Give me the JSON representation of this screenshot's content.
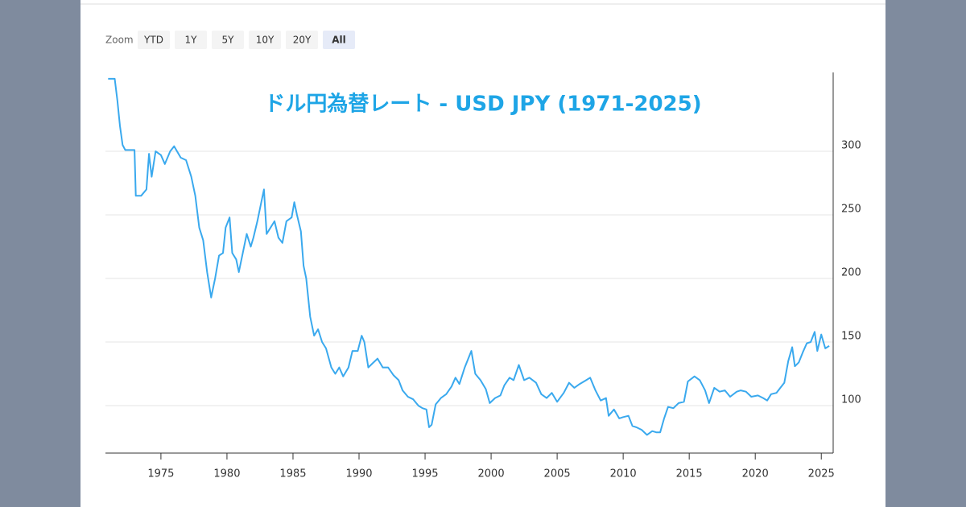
{
  "range_selector": {
    "label": "Zoom",
    "buttons": [
      "YTD",
      "1Y",
      "5Y",
      "10Y",
      "20Y",
      "All"
    ],
    "selected": "All"
  },
  "chart_data": {
    "type": "line",
    "title": "ドル円為替レート - USD JPY (1971-2025)",
    "color": "#3aa9ee",
    "grid": true,
    "x": [
      1971.0,
      1971.5,
      1971.7,
      1971.9,
      1972.1,
      1972.3,
      1972.6,
      1973.0,
      1973.1,
      1973.5,
      1973.9,
      1974.1,
      1974.3,
      1974.6,
      1975.0,
      1975.3,
      1975.7,
      1976.0,
      1976.5,
      1976.9,
      1977.3,
      1977.6,
      1977.9,
      1978.2,
      1978.5,
      1978.8,
      1979.1,
      1979.4,
      1979.7,
      1979.9,
      1980.2,
      1980.4,
      1980.7,
      1980.9,
      1981.2,
      1981.5,
      1981.8,
      1982.0,
      1982.3,
      1982.6,
      1982.8,
      1983.0,
      1983.3,
      1983.6,
      1983.9,
      1984.2,
      1984.5,
      1984.9,
      1985.1,
      1985.3,
      1985.6,
      1985.8,
      1986.0,
      1986.3,
      1986.6,
      1986.9,
      1987.2,
      1987.5,
      1987.9,
      1988.2,
      1988.5,
      1988.8,
      1989.2,
      1989.5,
      1989.9,
      1990.2,
      1990.4,
      1990.7,
      1991.0,
      1991.4,
      1991.8,
      1992.2,
      1992.6,
      1993.0,
      1993.3,
      1993.7,
      1994.1,
      1994.5,
      1994.8,
      1995.1,
      1995.3,
      1995.5,
      1995.8,
      1996.2,
      1996.6,
      1997.0,
      1997.3,
      1997.6,
      1998.0,
      1998.5,
      1998.8,
      1999.2,
      1999.6,
      1999.9,
      2000.3,
      2000.7,
      2001.0,
      2001.4,
      2001.7,
      2002.1,
      2002.5,
      2002.9,
      2003.4,
      2003.8,
      2004.2,
      2004.6,
      2005.0,
      2005.5,
      2005.9,
      2006.3,
      2006.7,
      2007.2,
      2007.5,
      2007.9,
      2008.3,
      2008.7,
      2008.9,
      2009.3,
      2009.7,
      2010.0,
      2010.4,
      2010.7,
      2011.0,
      2011.4,
      2011.8,
      2012.2,
      2012.5,
      2012.8,
      2013.1,
      2013.4,
      2013.8,
      2014.2,
      2014.6,
      2014.9,
      2015.4,
      2015.8,
      2016.2,
      2016.5,
      2016.9,
      2017.3,
      2017.7,
      2018.1,
      2018.6,
      2018.9,
      2019.3,
      2019.7,
      2020.2,
      2020.6,
      2020.9,
      2021.2,
      2021.6,
      2021.9,
      2022.2,
      2022.5,
      2022.8,
      2023.0,
      2023.3,
      2023.6,
      2023.9,
      2024.2,
      2024.5,
      2024.7,
      2025.0,
      2025.3,
      2025.6
    ],
    "values": [
      357,
      357,
      340,
      320,
      305,
      301,
      301,
      301,
      265,
      265,
      270,
      298,
      280,
      300,
      297,
      290,
      300,
      304,
      295,
      293,
      280,
      265,
      240,
      230,
      205,
      185,
      200,
      218,
      220,
      240,
      248,
      220,
      215,
      205,
      220,
      235,
      225,
      232,
      245,
      260,
      270,
      235,
      240,
      245,
      232,
      228,
      245,
      248,
      260,
      250,
      237,
      210,
      200,
      170,
      155,
      160,
      150,
      145,
      130,
      125,
      130,
      123,
      130,
      143,
      143,
      155,
      150,
      130,
      133,
      137,
      130,
      130,
      124,
      120,
      112,
      107,
      105,
      100,
      98,
      97,
      83,
      85,
      101,
      106,
      109,
      115,
      122,
      117,
      130,
      143,
      125,
      120,
      113,
      102,
      106,
      108,
      116,
      122,
      120,
      132,
      120,
      122,
      118,
      109,
      106,
      110,
      103,
      110,
      118,
      114,
      117,
      120,
      122,
      112,
      104,
      106,
      92,
      97,
      90,
      91,
      92,
      84,
      83,
      81,
      77,
      80,
      79,
      79,
      90,
      99,
      98,
      102,
      103,
      119,
      123,
      120,
      112,
      102,
      114,
      111,
      112,
      107,
      111,
      112,
      111,
      107,
      108,
      106,
      104,
      109,
      110,
      114,
      118,
      135,
      146,
      131,
      134,
      142,
      149,
      150,
      158,
      143,
      156,
      145,
      147
    ],
    "xlim": [
      1970.8,
      2025.9
    ],
    "xticks": [
      1975,
      1980,
      1985,
      1990,
      1995,
      2000,
      2005,
      2010,
      2015,
      2020,
      2025
    ],
    "ylim": [
      62.7,
      362
    ],
    "yticks": [
      100,
      150,
      200,
      250,
      300
    ]
  }
}
